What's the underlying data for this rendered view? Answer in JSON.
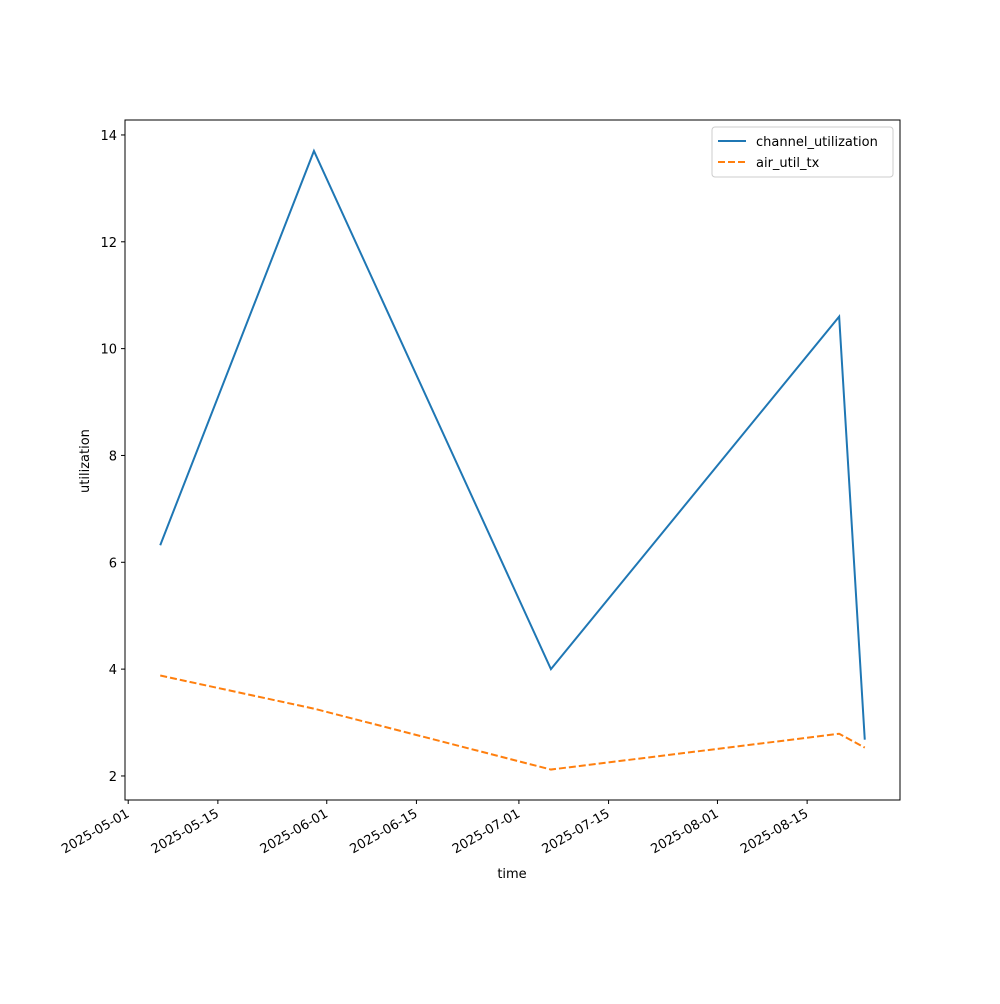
{
  "chart_data": {
    "type": "line",
    "x_label": "time",
    "y_label": "utilization",
    "x": [
      "2025-05-06",
      "2025-05-30",
      "2025-07-06",
      "2025-08-20",
      "2025-08-24"
    ],
    "series": [
      {
        "name": "channel_utilization",
        "color": "#1f77b4",
        "dash": "solid",
        "values": [
          6.32,
          13.7,
          4.0,
          10.6,
          2.68
        ]
      },
      {
        "name": "air_util_tx",
        "color": "#ff7f0e",
        "dash": "dashed",
        "values": [
          3.88,
          3.26,
          2.12,
          2.79,
          2.53
        ]
      }
    ],
    "xlim": [
      "2025-04-30T12:00",
      "2025-08-29T12:00"
    ],
    "xticks": [
      "2025-05-01",
      "2025-05-15",
      "2025-06-01",
      "2025-06-15",
      "2025-07-01",
      "2025-07-15",
      "2025-08-01",
      "2025-08-15"
    ],
    "ylim": [
      1.55,
      14.28
    ],
    "yticks": [
      2,
      4,
      6,
      8,
      10,
      12,
      14
    ],
    "legend": "upper right"
  }
}
